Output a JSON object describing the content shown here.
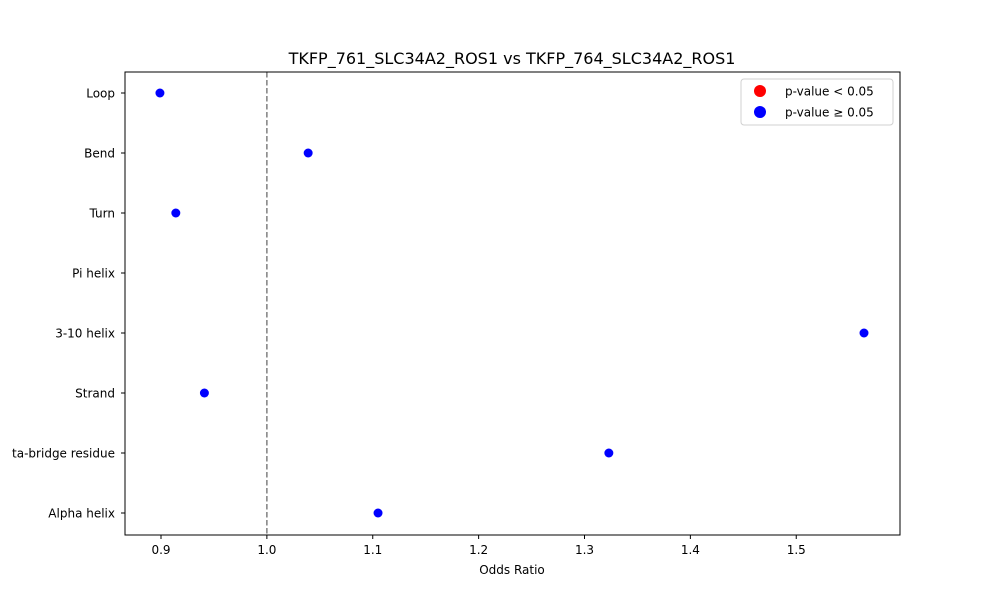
{
  "chart_data": {
    "type": "scatter",
    "title": "TKFP_761_SLC34A2_ROS1 vs TKFP_764_SLC34A2_ROS1",
    "xlabel": "Odds Ratio",
    "ylabel": "",
    "xlim": [
      0.866,
      1.598
    ],
    "xticks": [
      0.9,
      1.0,
      1.1,
      1.2,
      1.3,
      1.4,
      1.5
    ],
    "xtick_labels": [
      "0.9",
      "1.0",
      "1.1",
      "1.2",
      "1.3",
      "1.4",
      "1.5"
    ],
    "categories": [
      "Loop",
      "Bend",
      "Turn",
      "Pi helix",
      "3-10 helix",
      "Strand",
      "Beta-bridge residue",
      "Alpha helix"
    ],
    "category_labels_visible": [
      "Loop",
      "Bend",
      "Turn",
      "Pi helix",
      "3-10 helix",
      "Strand",
      "ta-bridge residue",
      "Alpha helix"
    ],
    "values": [
      0.899,
      1.039,
      0.914,
      null,
      1.564,
      0.941,
      1.323,
      1.105
    ],
    "significant": [
      false,
      false,
      false,
      null,
      false,
      false,
      false,
      false
    ],
    "reference_line": {
      "x": 1.0,
      "style": "dashed",
      "color": "#808080"
    },
    "legend": {
      "position": "upper right",
      "entries": [
        {
          "label": "p-value < 0.05",
          "color": "#ff0000"
        },
        {
          "label": "p-value ≥ 0.05",
          "color": "#0000ff"
        }
      ]
    },
    "grid": false
  }
}
